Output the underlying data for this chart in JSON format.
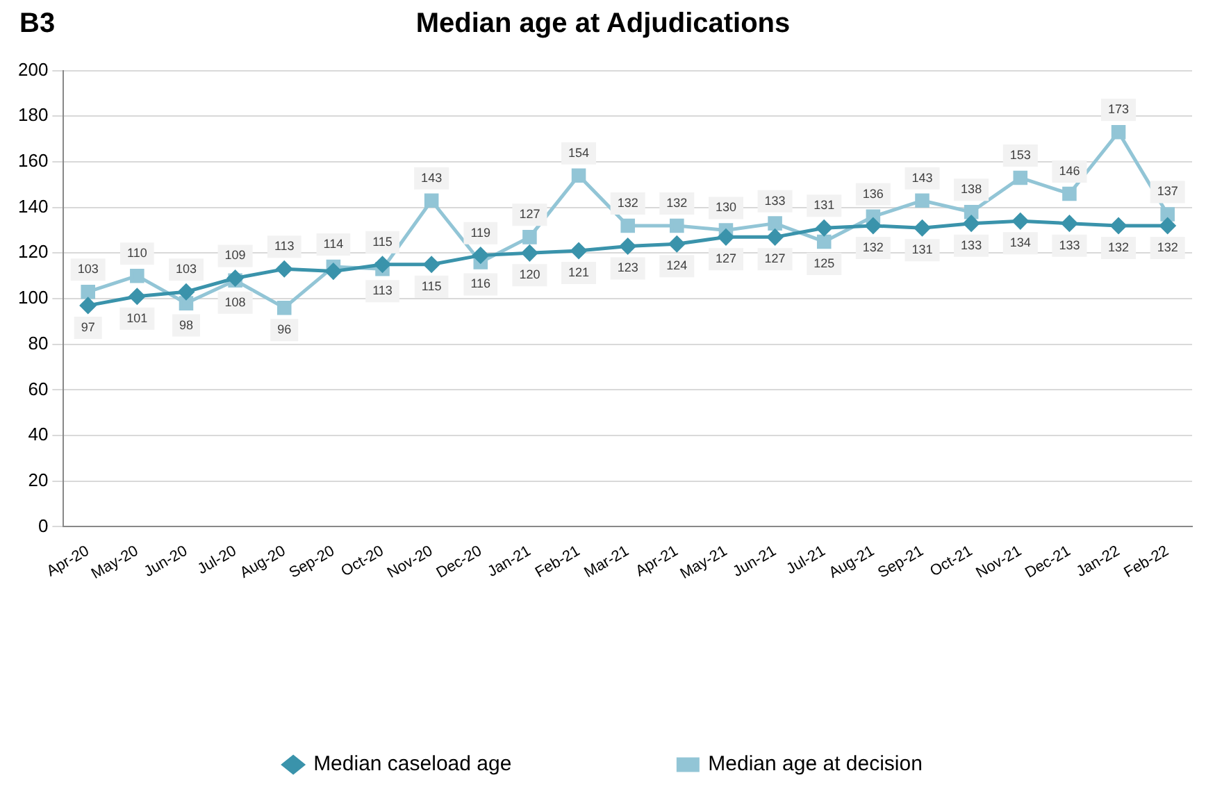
{
  "chart_data": {
    "type": "line",
    "title": "Median age at Adjudications",
    "annotations": [
      "B3"
    ],
    "categories": [
      "Apr-20",
      "May-20",
      "Jun-20",
      "Jul-20",
      "Aug-20",
      "Sep-20",
      "Oct-20",
      "Nov-20",
      "Dec-20",
      "Jan-21",
      "Feb-21",
      "Mar-21",
      "Apr-21",
      "May-21",
      "Jun-21",
      "Jul-21",
      "Aug-21",
      "Sep-21",
      "Oct-21",
      "Nov-21",
      "Dec-21",
      "Jan-22",
      "Feb-22"
    ],
    "series": [
      {
        "name": "Median caseload age",
        "color": "#3a93ab",
        "marker": "diamond",
        "values": [
          97,
          101,
          103,
          109,
          113,
          112,
          115,
          115,
          119,
          120,
          121,
          123,
          124,
          127,
          127,
          131,
          132,
          131,
          133,
          134,
          133,
          132,
          132
        ],
        "value_labels": [
          "97",
          "101",
          "103",
          "109",
          "113",
          null,
          "115",
          "115",
          "119",
          "120",
          "121",
          "123",
          "124",
          "127",
          "127",
          "131",
          "132",
          "131",
          "133",
          "134",
          "133",
          "132",
          "132"
        ]
      },
      {
        "name": "Median age at decision",
        "color": "#92c5d6",
        "marker": "square",
        "values": [
          103,
          110,
          98,
          108,
          96,
          114,
          113,
          143,
          116,
          127,
          154,
          132,
          132,
          130,
          133,
          125,
          136,
          143,
          138,
          153,
          146,
          173,
          137
        ],
        "value_labels": [
          "103",
          "110",
          "98",
          "108",
          "96",
          "114",
          "113",
          "143",
          "116",
          "127",
          "154",
          "132",
          "132",
          "130",
          "133",
          "125",
          "136",
          "143",
          "138",
          "153",
          "146",
          "173",
          "137"
        ]
      }
    ],
    "ylim": [
      0,
      200
    ],
    "yticks": [
      0,
      20,
      40,
      60,
      80,
      100,
      120,
      140,
      160,
      180,
      200
    ],
    "grid": "y",
    "legend": "bottom",
    "line_style": "solid"
  }
}
